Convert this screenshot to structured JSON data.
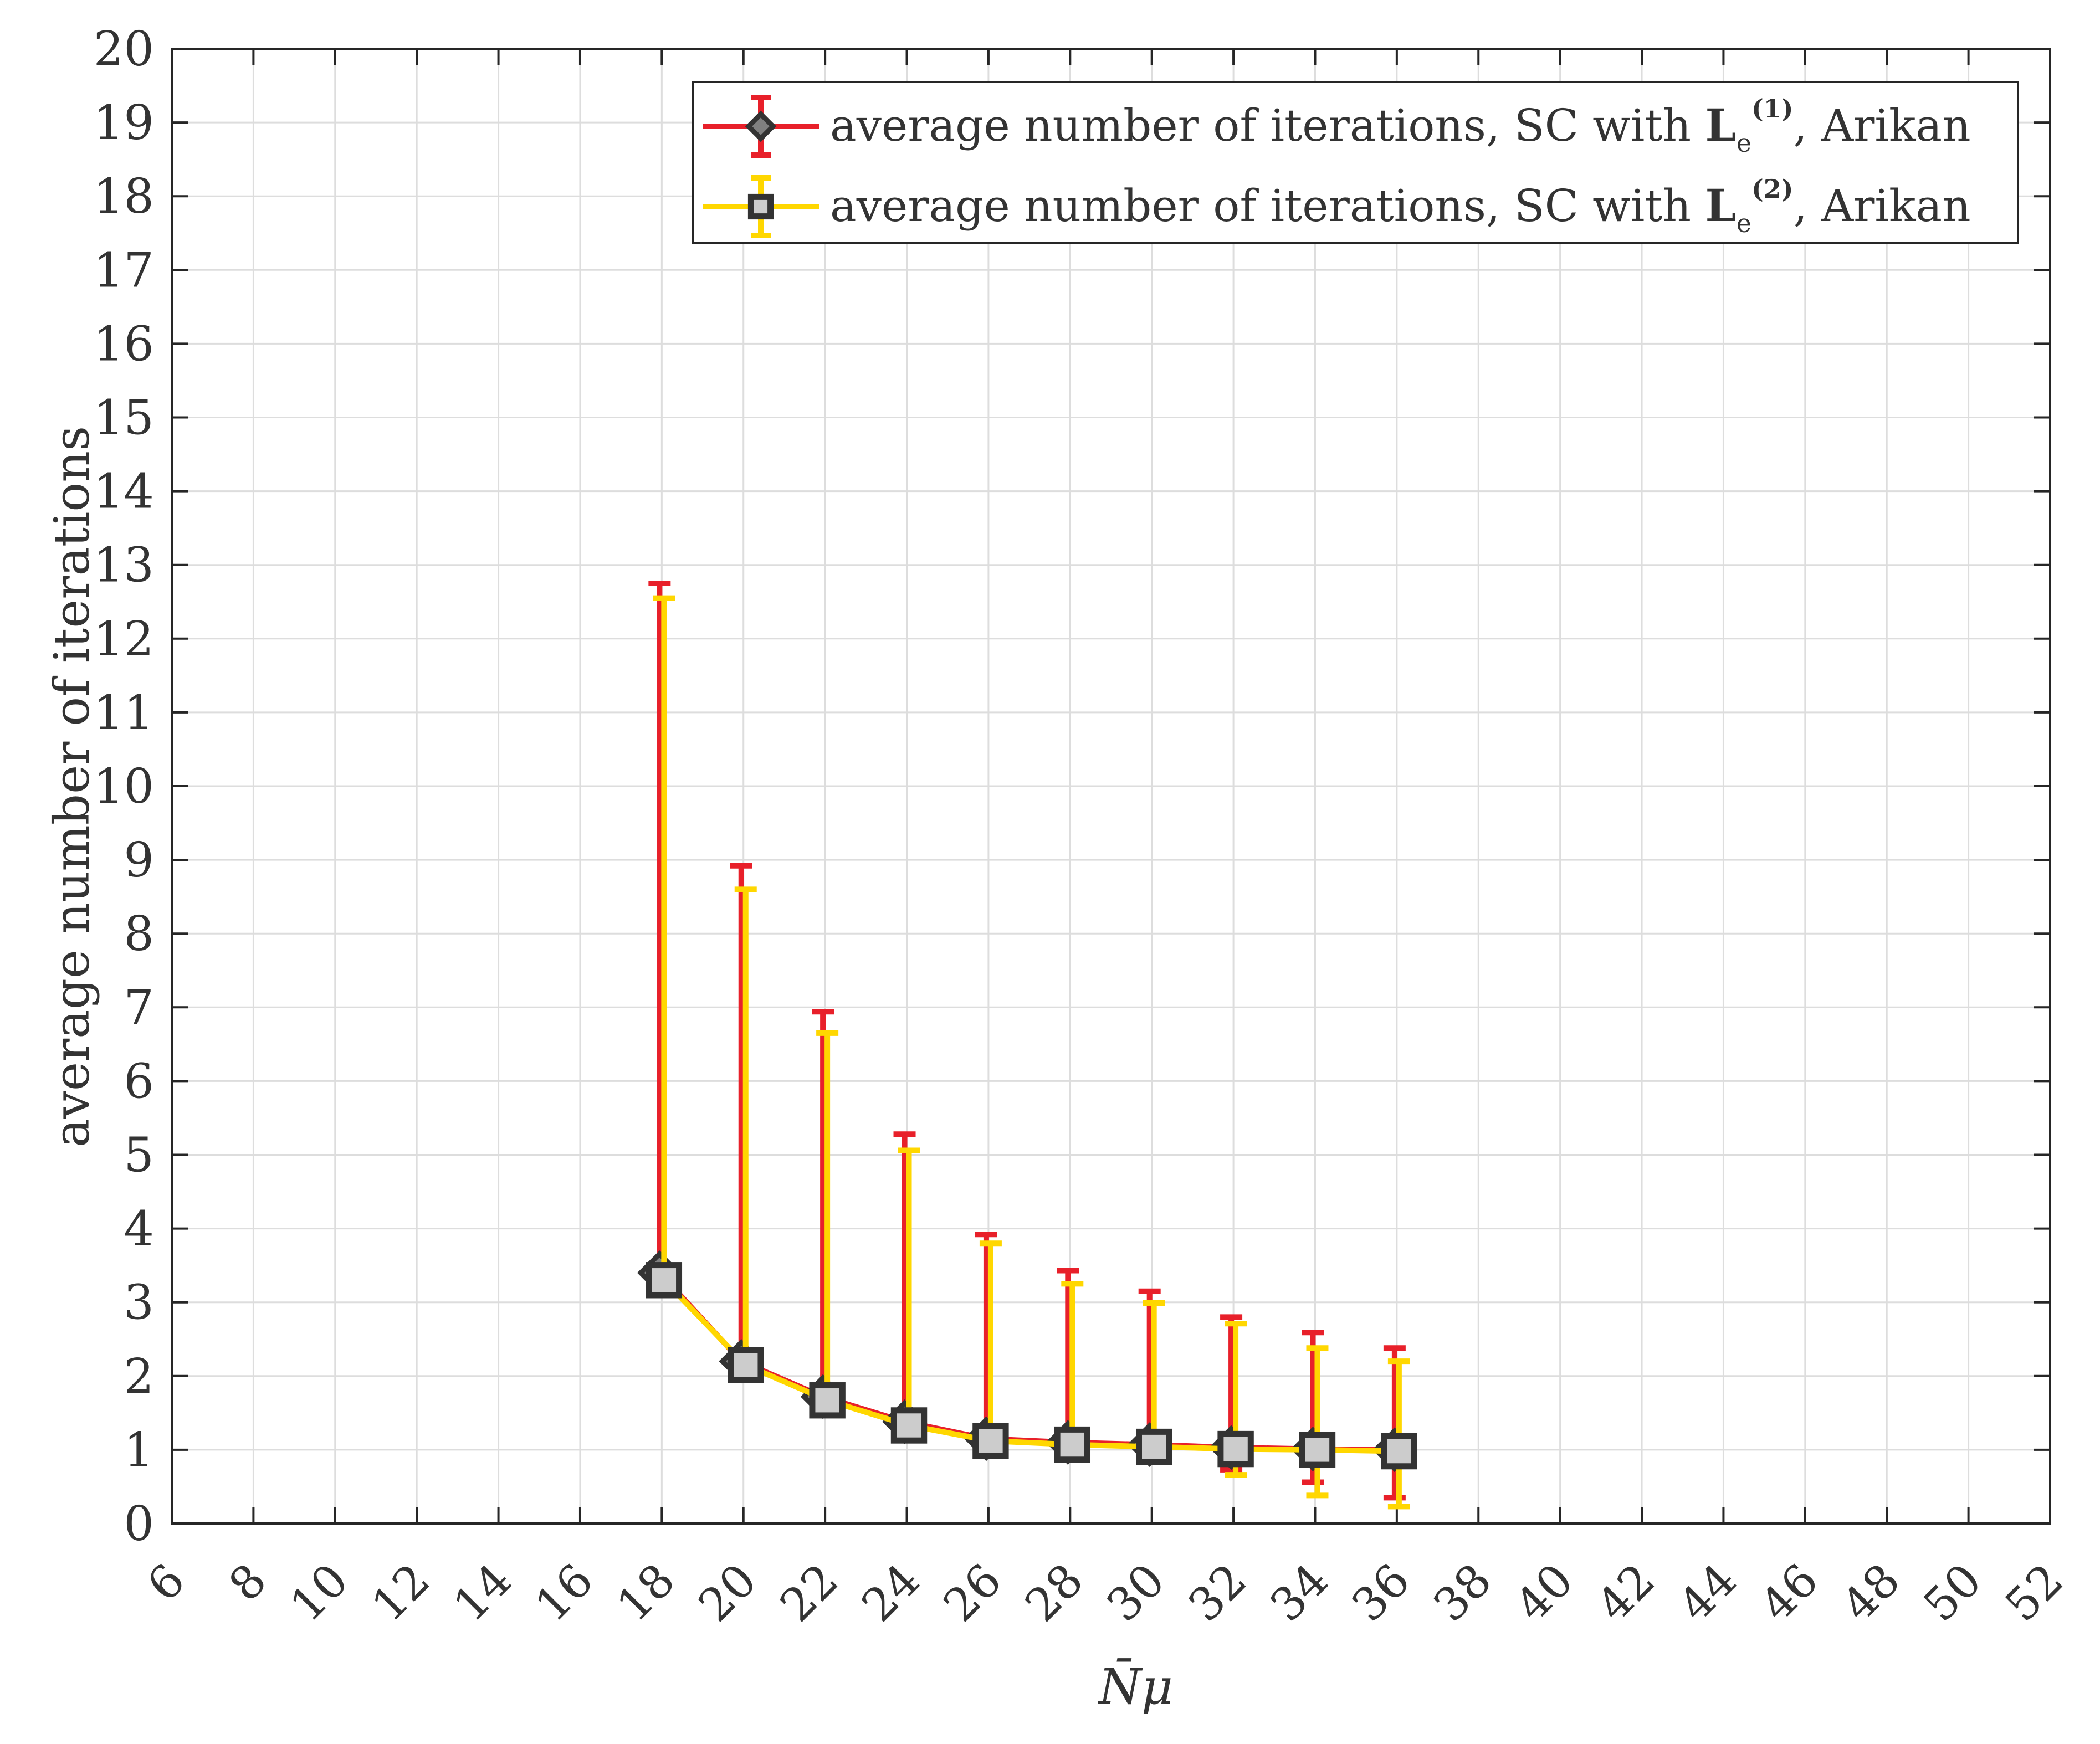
{
  "chart_data": {
    "type": "line",
    "title": "",
    "xlabel": "N̄μ",
    "ylabel": "average number of iterations",
    "xlim": [
      6,
      52
    ],
    "ylim": [
      0,
      20
    ],
    "xticks": [
      6,
      8,
      10,
      12,
      14,
      16,
      18,
      20,
      22,
      24,
      26,
      28,
      30,
      32,
      34,
      36,
      38,
      40,
      42,
      44,
      46,
      48,
      50,
      52
    ],
    "yticks": [
      0,
      1,
      2,
      3,
      4,
      5,
      6,
      7,
      8,
      9,
      10,
      11,
      12,
      13,
      14,
      15,
      16,
      17,
      18,
      19,
      20
    ],
    "grid": true,
    "legend_position": "top-right",
    "x": [
      18,
      20,
      22,
      24,
      26,
      28,
      30,
      32,
      34,
      36
    ],
    "series": [
      {
        "name_prefix": "average number of iterations, SC with",
        "name_symbol": "L",
        "name_sub": "e",
        "name_sup": "(1)",
        "name_suffix": ", Arikan",
        "color": "#e8202a",
        "marker": "diamond",
        "values": [
          3.4,
          2.2,
          1.72,
          1.38,
          1.15,
          1.1,
          1.07,
          1.03,
          1.01,
          1.0
        ],
        "err_lower": [
          0.0,
          0.0,
          0.0,
          0.0,
          0.0,
          0.0,
          0.05,
          0.3,
          0.45,
          0.65
        ],
        "err_upper": [
          9.35,
          6.72,
          5.22,
          3.9,
          2.77,
          2.33,
          2.08,
          1.77,
          1.58,
          1.38
        ]
      },
      {
        "name_prefix": "average number of iterations, SC with",
        "name_symbol": "L",
        "name_sub": "e",
        "name_sup": "(2)",
        "name_suffix": ", Arikan",
        "color": "#ffd700",
        "marker": "square",
        "values": [
          3.3,
          2.15,
          1.67,
          1.33,
          1.12,
          1.07,
          1.04,
          1.01,
          1.0,
          0.98
        ],
        "err_lower": [
          0.0,
          0.0,
          0.0,
          0.0,
          0.0,
          0.0,
          0.15,
          0.35,
          0.62,
          0.75
        ],
        "err_upper": [
          9.25,
          6.45,
          4.98,
          3.73,
          2.68,
          2.18,
          1.95,
          1.7,
          1.38,
          1.22
        ]
      }
    ]
  }
}
